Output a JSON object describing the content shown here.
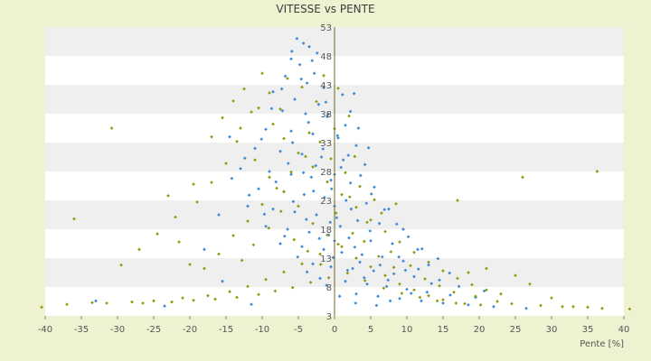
{
  "chart_data": {
    "type": "scatter",
    "title": "VITESSE vs PENTE",
    "xlabel": "Pente [%]",
    "ylabel": "",
    "xlim": [
      -40,
      40
    ],
    "ylim": [
      3,
      53
    ],
    "x_ticks": [
      "-40",
      "-35",
      "-30",
      "-25",
      "-20",
      "-15",
      "-10",
      "-5",
      "0",
      "5",
      "10",
      "15",
      "20",
      "25",
      "30",
      "35",
      "40"
    ],
    "y_ticks": [
      "3",
      "8",
      "13",
      "18",
      "23",
      "28",
      "33",
      "38",
      "43",
      "48",
      "53"
    ],
    "grid": true,
    "legend": "none",
    "colors": {
      "blue": "#3a8ad8",
      "olive": "#8e9a10",
      "band_a": "#ffffff",
      "band_b": "#efefef",
      "axis": "#6e6a1c",
      "background": "#eef2d0"
    },
    "series": [
      {
        "color": "#3a8ad8",
        "points": [
          [
            -5.2,
            51
          ],
          [
            -4.3,
            50.2
          ],
          [
            -3.5,
            49.6
          ],
          [
            -6,
            47.5
          ],
          [
            -4.8,
            46.5
          ],
          [
            -2.8,
            45
          ],
          [
            -6.8,
            44.5
          ],
          [
            -3.8,
            43.3
          ],
          [
            -1.5,
            42.5
          ],
          [
            2.7,
            41.5
          ],
          [
            -8.5,
            41.8
          ],
          [
            -5.5,
            40.5
          ],
          [
            -2.2,
            39.6
          ],
          [
            -7.2,
            38.5
          ],
          [
            -4,
            38
          ],
          [
            -1,
            37.5
          ],
          [
            1.5,
            36
          ],
          [
            -9.5,
            35.3
          ],
          [
            -6,
            35
          ],
          [
            -3,
            34.5
          ],
          [
            0.5,
            33.8
          ],
          [
            3,
            32.5
          ],
          [
            -11,
            32
          ],
          [
            -7.5,
            31.5
          ],
          [
            -4.5,
            31
          ],
          [
            -1.8,
            30.5
          ],
          [
            1.2,
            30
          ],
          [
            4.2,
            29.2
          ],
          [
            -13,
            28.5
          ],
          [
            -9,
            28
          ],
          [
            -6,
            27.5
          ],
          [
            -3.2,
            27
          ],
          [
            -0.5,
            26.5
          ],
          [
            2.2,
            26
          ],
          [
            5.5,
            25.3
          ],
          [
            -10.5,
            25
          ],
          [
            -7,
            24.5
          ],
          [
            -4.2,
            24
          ],
          [
            -1.4,
            23.5
          ],
          [
            1.6,
            23
          ],
          [
            4.4,
            22.5
          ],
          [
            7.5,
            21.5
          ],
          [
            -12,
            22
          ],
          [
            -8.5,
            21.5
          ],
          [
            -5.5,
            21
          ],
          [
            -2.5,
            20.5
          ],
          [
            0.3,
            20
          ],
          [
            3.2,
            19.5
          ],
          [
            6.2,
            19
          ],
          [
            9.5,
            18
          ],
          [
            -9.5,
            18.5
          ],
          [
            -6.5,
            18
          ],
          [
            -3.5,
            17.5
          ],
          [
            -0.8,
            17
          ],
          [
            2,
            16.5
          ],
          [
            5,
            16
          ],
          [
            8,
            15.5
          ],
          [
            11.5,
            14.5
          ],
          [
            -7.5,
            15.5
          ],
          [
            -4.5,
            15
          ],
          [
            -1.5,
            14.5
          ],
          [
            1,
            14
          ],
          [
            3.8,
            13.6
          ],
          [
            6.6,
            13.2
          ],
          [
            9.5,
            12.5
          ],
          [
            13,
            11.8
          ],
          [
            -3,
            12
          ],
          [
            -0.5,
            11.5
          ],
          [
            2.5,
            11.2
          ],
          [
            5.4,
            10.8
          ],
          [
            8.2,
            10.3
          ],
          [
            11,
            9.8
          ],
          [
            14.5,
            9.2
          ],
          [
            -2,
            9.5
          ],
          [
            1.5,
            9
          ],
          [
            4.5,
            8.5
          ],
          [
            7.2,
            8.1
          ],
          [
            10,
            7.6
          ],
          [
            12.8,
            7.1
          ],
          [
            16,
            6.6
          ],
          [
            19.5,
            6.2
          ],
          [
            3,
            6.8
          ],
          [
            6,
            6.4
          ],
          [
            9,
            6
          ],
          [
            12,
            5.6
          ],
          [
            15,
            5.2
          ],
          [
            18.5,
            4.9
          ],
          [
            22,
            4.6
          ],
          [
            26.5,
            4.3
          ],
          [
            -33,
            5.6
          ],
          [
            -23.5,
            4.7
          ],
          [
            -11.5,
            5
          ],
          [
            -15.5,
            9
          ],
          [
            -18,
            14.5
          ],
          [
            -14.5,
            34
          ],
          [
            -16,
            20.5
          ],
          [
            0,
            27.5
          ],
          [
            0,
            22
          ],
          [
            0,
            16
          ],
          [
            0.8,
            18.5
          ],
          [
            -0.4,
            25
          ],
          [
            2.3,
            21.5
          ],
          [
            -2.6,
            29
          ],
          [
            -5.8,
            33
          ],
          [
            -3.6,
            36.5
          ],
          [
            -1.2,
            40
          ],
          [
            -4.6,
            44
          ],
          [
            -2.4,
            48.5
          ],
          [
            -5.9,
            48.8
          ],
          [
            -3.1,
            47.2
          ],
          [
            -7.3,
            42.3
          ],
          [
            -8.7,
            38.9
          ],
          [
            -10.1,
            33.6
          ],
          [
            -12.4,
            30.3
          ],
          [
            -14.2,
            26.8
          ],
          [
            -11.8,
            23.9
          ],
          [
            -9.7,
            20.6
          ],
          [
            -6.9,
            16.8
          ],
          [
            -5.1,
            13.2
          ],
          [
            -3.8,
            10.6
          ],
          [
            -1.1,
            8.3
          ],
          [
            0.7,
            6.4
          ],
          [
            2.9,
            5.2
          ],
          [
            5.8,
            4.8
          ],
          [
            7.7,
            5.6
          ],
          [
            10.6,
            6.9
          ],
          [
            13.4,
            8.6
          ],
          [
            15.9,
            10.4
          ],
          [
            17.2,
            8.1
          ],
          [
            20.7,
            7.3
          ],
          [
            14.3,
            12.9
          ],
          [
            12.1,
            14.6
          ],
          [
            10.2,
            16.7
          ],
          [
            8.6,
            18.9
          ],
          [
            6.9,
            21.4
          ],
          [
            5.1,
            24.1
          ],
          [
            3.6,
            27.3
          ],
          [
            1.9,
            30.8
          ],
          [
            0.4,
            34.2
          ],
          [
            -0.9,
            37.9
          ],
          [
            1.1,
            41.3
          ],
          [
            2.2,
            38.4
          ],
          [
            3.3,
            35.5
          ],
          [
            4.7,
            32.1
          ],
          [
            -6.4,
            29.4
          ],
          [
            -8.1,
            26.2
          ],
          [
            -5.7,
            22.8
          ],
          [
            -3.9,
            19.7
          ],
          [
            -2.1,
            16.4
          ],
          [
            -0.2,
            13.1
          ],
          [
            1.8,
            10.9
          ],
          [
            4.1,
            9.6
          ],
          [
            6.3,
            11.8
          ],
          [
            8.9,
            13.2
          ],
          [
            11.6,
            11.1
          ],
          [
            2.8,
            14.9
          ],
          [
            4.9,
            17.7
          ],
          [
            -2.9,
            24.6
          ],
          [
            -4.3,
            27.8
          ],
          [
            -1.6,
            31.9
          ],
          [
            0.9,
            28.7
          ],
          [
            -0.6,
            19.2
          ],
          [
            3.5,
            12.3
          ],
          [
            7.4,
            9.2
          ],
          [
            9.8,
            10.9
          ]
        ]
      },
      {
        "color": "#8e9a10",
        "points": [
          [
            -36,
            19.8
          ],
          [
            -30.8,
            35.5
          ],
          [
            26,
            27
          ],
          [
            36.3,
            28
          ],
          [
            -23,
            23.8
          ],
          [
            -21.5,
            15.8
          ],
          [
            -20,
            11.9
          ],
          [
            -19.5,
            25.8
          ],
          [
            -17,
            34
          ],
          [
            -15.5,
            37.3
          ],
          [
            -14,
            40.2
          ],
          [
            -12.5,
            42.3
          ],
          [
            -10.5,
            39
          ],
          [
            -8.5,
            36.2
          ],
          [
            -7,
            33.7
          ],
          [
            -5,
            31.2
          ],
          [
            -3,
            28.8
          ],
          [
            -1,
            26.2
          ],
          [
            1,
            24
          ],
          [
            3,
            21.8
          ],
          [
            5,
            19.6
          ],
          [
            7,
            17.6
          ],
          [
            9,
            15.8
          ],
          [
            11,
            14
          ],
          [
            13,
            12.3
          ],
          [
            15,
            10.8
          ],
          [
            17,
            9.5
          ],
          [
            19,
            8.4
          ],
          [
            21,
            7.5
          ],
          [
            23,
            6.8
          ],
          [
            17,
            23
          ],
          [
            18.5,
            10.5
          ],
          [
            21,
            11.2
          ],
          [
            25,
            10
          ],
          [
            27,
            8.5
          ],
          [
            30,
            6.1
          ],
          [
            33,
            4.6
          ],
          [
            35,
            4.5
          ],
          [
            37,
            4.3
          ],
          [
            40.8,
            4.2
          ],
          [
            -13,
            35.5
          ],
          [
            -11,
            30
          ],
          [
            -9,
            27
          ],
          [
            -7,
            24.5
          ],
          [
            -5,
            22
          ],
          [
            -3,
            19
          ],
          [
            -1,
            17
          ],
          [
            1,
            15
          ],
          [
            3,
            13
          ],
          [
            5,
            11.5
          ],
          [
            7,
            10
          ],
          [
            9,
            8.5
          ],
          [
            11,
            7.5
          ],
          [
            13,
            6.5
          ],
          [
            15,
            5.8
          ],
          [
            18,
            5.1
          ],
          [
            -16,
            13.7
          ],
          [
            -18,
            11.2
          ],
          [
            -14,
            16.9
          ],
          [
            -12,
            19.4
          ],
          [
            -10,
            22.3
          ],
          [
            -8,
            25.1
          ],
          [
            -6,
            27.9
          ],
          [
            -4,
            30.6
          ],
          [
            -2,
            33.1
          ],
          [
            0,
            35.4
          ],
          [
            2,
            37.6
          ],
          [
            -2.5,
            40.1
          ],
          [
            -4.5,
            42.6
          ],
          [
            -6.5,
            44.1
          ],
          [
            -9,
            41.6
          ],
          [
            -11.5,
            38.3
          ],
          [
            -13.5,
            33.2
          ],
          [
            -15,
            29.4
          ],
          [
            -17,
            26.1
          ],
          [
            -19,
            22.7
          ],
          [
            -22,
            20.1
          ],
          [
            -24.5,
            17.2
          ],
          [
            -27,
            14.5
          ],
          [
            -29.5,
            11.8
          ],
          [
            -31.5,
            5.2
          ],
          [
            -28,
            5.4
          ],
          [
            -25,
            5.6
          ],
          [
            -21,
            6.1
          ],
          [
            -17.5,
            6.5
          ],
          [
            -14.5,
            7.2
          ],
          [
            -12,
            8.1
          ],
          [
            -9.5,
            9.3
          ],
          [
            -7,
            10.6
          ],
          [
            -4.5,
            12
          ],
          [
            -2,
            13.7
          ],
          [
            0.5,
            15.4
          ],
          [
            2.5,
            17.3
          ],
          [
            4.5,
            19.2
          ],
          [
            6.5,
            20.8
          ],
          [
            8.5,
            22.4
          ],
          [
            1.5,
            27.8
          ],
          [
            3.5,
            25.4
          ],
          [
            5.5,
            23.1
          ],
          [
            -0.5,
            30.2
          ],
          [
            -3.5,
            34.7
          ],
          [
            -7.5,
            38.8
          ],
          [
            -10,
            45
          ],
          [
            -1.5,
            44.6
          ],
          [
            0.5,
            42.4
          ],
          [
            2.8,
            30.6
          ],
          [
            7.8,
            14.1
          ],
          [
            10.5,
            11.7
          ],
          [
            12.5,
            9.4
          ],
          [
            14.5,
            8.2
          ],
          [
            16.5,
            7.1
          ],
          [
            19.5,
            6.4
          ],
          [
            22.5,
            5.5
          ],
          [
            24.5,
            5.1
          ],
          [
            28.5,
            4.8
          ],
          [
            31.5,
            4.6
          ],
          [
            -37,
            5
          ],
          [
            -33.5,
            5.3
          ],
          [
            -26.5,
            5.2
          ],
          [
            -22.5,
            5.4
          ],
          [
            -19.5,
            5.7
          ],
          [
            -16.5,
            5.9
          ],
          [
            -13.5,
            6.2
          ],
          [
            -10.5,
            6.7
          ],
          [
            -8.2,
            7.3
          ],
          [
            -5.8,
            7.9
          ],
          [
            -3.3,
            8.8
          ],
          [
            -0.8,
            9.6
          ],
          [
            1.8,
            10.4
          ],
          [
            4.2,
            9.1
          ],
          [
            6.8,
            7.8
          ],
          [
            9.3,
            6.9
          ],
          [
            11.8,
            6.2
          ],
          [
            14.2,
            5.6
          ],
          [
            16.8,
            5.2
          ],
          [
            20.2,
            4.9
          ],
          [
            -40.5,
            4.5
          ],
          [
            -12.8,
            12.6
          ],
          [
            -11.2,
            15.3
          ],
          [
            -9.1,
            18.2
          ],
          [
            -7.4,
            21.1
          ],
          [
            -5.6,
            16.2
          ],
          [
            -3.7,
            14.2
          ],
          [
            -1.9,
            11.9
          ],
          [
            0.2,
            20.8
          ],
          [
            2.1,
            23.6
          ],
          [
            4.1,
            15.9
          ],
          [
            6.1,
            13.3
          ],
          [
            8.2,
            11.4
          ]
        ]
      }
    ]
  }
}
